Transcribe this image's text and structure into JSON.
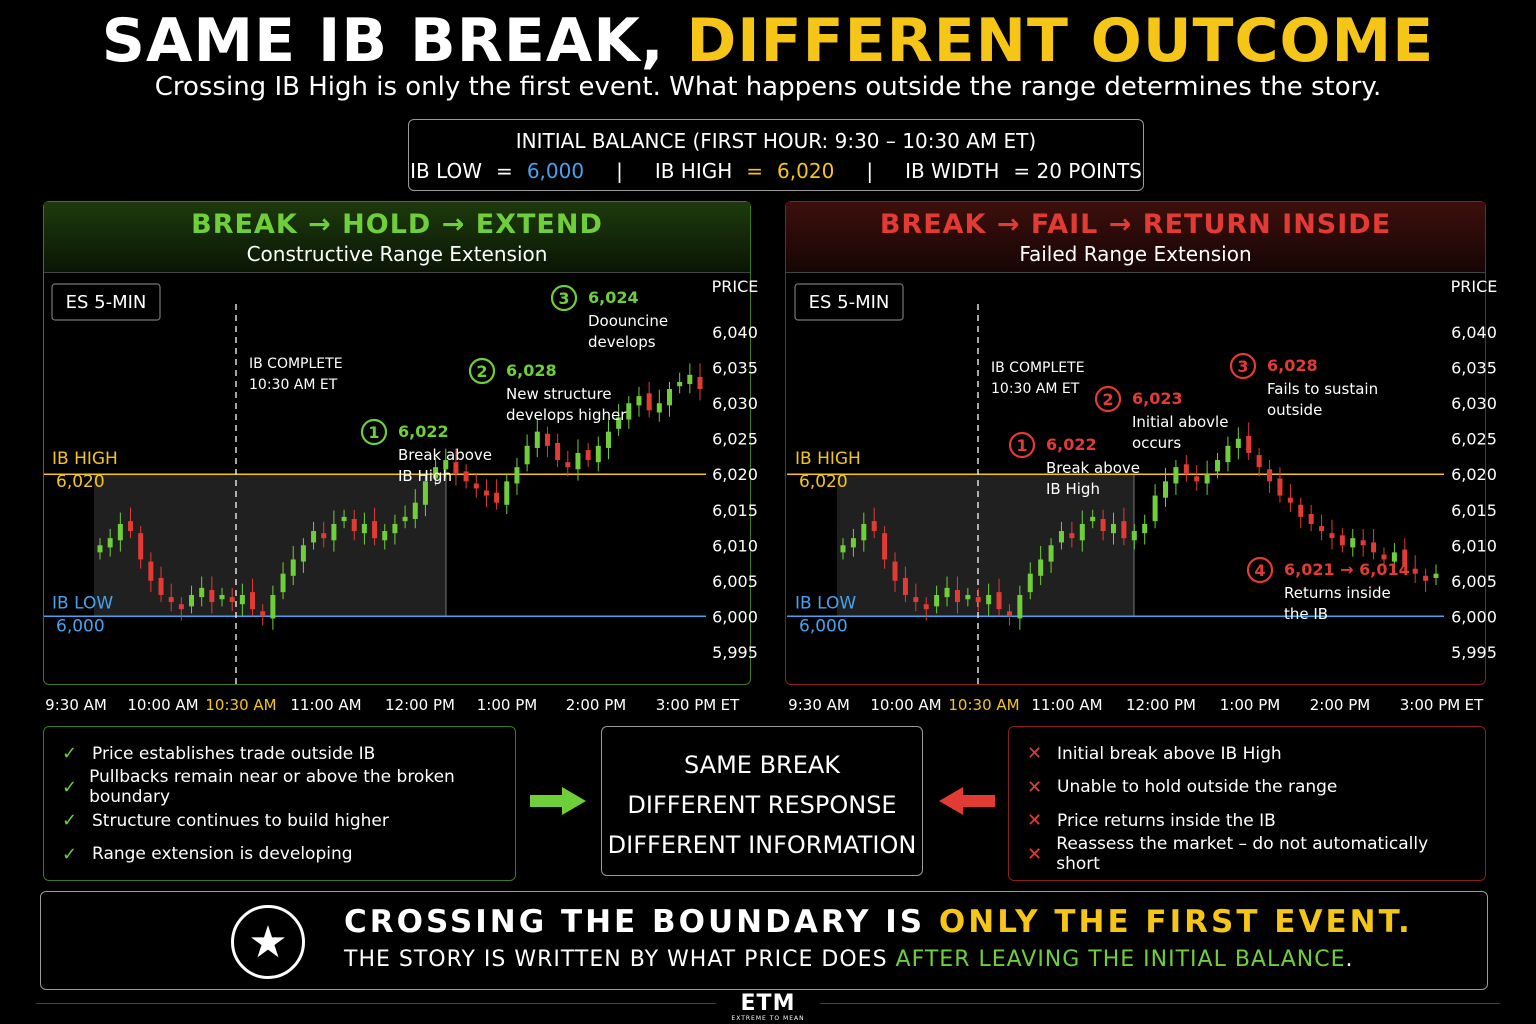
{
  "title": {
    "part1": "SAME IB BREAK,",
    "part2": "DIFFERENT OUTCOME"
  },
  "subtitle": "Crossing IB High is only the first event. What happens outside the range determines the story.",
  "ib_box": {
    "label_bold": "INITIAL BALANCE",
    "label_rest": "(FIRST HOUR: 9:30 – 10:30 AM ET)",
    "low_label": "IB LOW",
    "eq": "=",
    "low_value": "6,000",
    "sep": "|",
    "high_label": "IB HIGH",
    "high_value": "6,020",
    "width_label": "IB WIDTH",
    "width_value": "= 20 POINTS"
  },
  "colors": {
    "green": "#6fcf3a",
    "red": "#e23b33",
    "yellow": "#f5c518",
    "blue": "#46a3ef"
  },
  "left_panel": {
    "heading": "BREAK → HOLD → EXTEND",
    "subheading": "Constructive Range Extension"
  },
  "right_panel": {
    "heading": "BREAK → FAIL → RETURN INSIDE",
    "subheading": "Failed Range Extension"
  },
  "chart_common": {
    "instrument": "ES 5-MIN",
    "price_label": "PRICE",
    "ib_high_label": "IB HIGH",
    "ib_high_value": "6,020",
    "ib_low_label": "IB LOW",
    "ib_low_value": "6,000",
    "ib_complete_1": "IB COMPLETE",
    "ib_complete_2": "10:30 AM ET",
    "et_label": "ET"
  },
  "chart_data": [
    {
      "type": "candlestick",
      "title": "BREAK → HOLD → EXTEND",
      "ylabel": "PRICE",
      "ylim": [
        5993,
        6042
      ],
      "y_ticks": [
        "6,040",
        "6,035",
        "6,030",
        "6,025",
        "6,020",
        "6,015",
        "6,010",
        "6,005",
        "6,000",
        "5,995"
      ],
      "y_tick_values": [
        6040,
        6035,
        6030,
        6025,
        6020,
        6015,
        6010,
        6005,
        6000,
        5995
      ],
      "x_ticks": [
        "9:30 AM",
        "10:00 AM",
        "10:30 AM",
        "11:00 AM",
        "12:00 PM",
        "1:00 PM",
        "2:00 PM",
        "3:00 PM"
      ],
      "ib_high": 6020,
      "ib_low": 6000,
      "closes": [
        6010,
        6011,
        6013,
        6012,
        6008,
        6005,
        6003,
        6002,
        6001,
        6003,
        6004,
        6002,
        6003,
        6002,
        6003,
        6001,
        6000,
        6003,
        6006,
        6008,
        6010,
        6012,
        6011,
        6013,
        6014,
        6012,
        6013,
        6011,
        6012,
        6013,
        6014,
        6016,
        6019,
        6021,
        6022,
        6020,
        6019,
        6018,
        6017,
        6016,
        6019,
        6021,
        6024,
        6026,
        6024,
        6022,
        6021,
        6023,
        6022,
        6024,
        6026,
        6028,
        6030,
        6031,
        6029,
        6030,
        6032,
        6033,
        6034,
        6032
      ],
      "annotations": [
        {
          "num": "1",
          "price": "6,022",
          "text1": "Break above",
          "text2": "IB High"
        },
        {
          "num": "2",
          "price": "6,028",
          "text1": "New structure",
          "text2": "develops higher"
        },
        {
          "num": "3",
          "price": "6,024",
          "text1": "Doouncine",
          "text2": "develops"
        }
      ]
    },
    {
      "type": "candlestick",
      "title": "BREAK → FAIL → RETURN INSIDE",
      "ylabel": "PRICE",
      "ylim": [
        5993,
        6042
      ],
      "y_ticks": [
        "6,040",
        "6,035",
        "6,030",
        "6,025",
        "6,020",
        "6,015",
        "6,010",
        "6,005",
        "6,000",
        "5,995"
      ],
      "y_tick_values": [
        6040,
        6035,
        6030,
        6025,
        6020,
        6015,
        6010,
        6005,
        6000,
        5995
      ],
      "x_ticks": [
        "9:30 AM",
        "10:00 AM",
        "10:30 AM",
        "11:00 AM",
        "12:00 PM",
        "1:00 PM",
        "2:00 PM",
        "3:00 PM"
      ],
      "ib_high": 6020,
      "ib_low": 6000,
      "closes": [
        6010,
        6011,
        6013,
        6012,
        6008,
        6005,
        6003,
        6002,
        6001,
        6003,
        6004,
        6002,
        6003,
        6002,
        6003,
        6001,
        6000,
        6003,
        6006,
        6008,
        6010,
        6012,
        6011,
        6013,
        6014,
        6012,
        6013,
        6011,
        6012,
        6013,
        6017,
        6019,
        6021,
        6020,
        6019,
        6020,
        6022,
        6024,
        6025,
        6023,
        6021,
        6019,
        6017,
        6016,
        6014,
        6013,
        6012,
        6011,
        6010,
        6011,
        6010,
        6009,
        6008,
        6009,
        6007,
        6006,
        6005,
        6006
      ],
      "annotations": [
        {
          "num": "1",
          "price": "6,022",
          "text1": "Break above",
          "text2": "IB High"
        },
        {
          "num": "2",
          "price": "6,023",
          "text1": "Initial abovle",
          "text2": "occurs"
        },
        {
          "num": "3",
          "price": "6,028",
          "text1": "Fails to sustain",
          "text2": "outside"
        },
        {
          "num": "4",
          "price": "6,021 → 6,014",
          "text1": "Returns inside",
          "text2": "the IB"
        }
      ]
    }
  ],
  "left_list": [
    "Price establishes trade outside IB",
    "Pullbacks remain near or above the broken boundary",
    "Structure continues to build higher",
    "Range extension is developing"
  ],
  "right_list": [
    "Initial break above IB High",
    "Unable to hold outside the range",
    "Price returns inside the IB",
    "Reassess the market – do not automatically short"
  ],
  "check_mark": "✓",
  "x_mark": "✕",
  "center_box": [
    "SAME BREAK",
    "DIFFERENT RESPONSE",
    "DIFFERENT INFORMATION"
  ],
  "bottom": {
    "line1_a": "CROSSING THE BOUNDARY IS",
    "line1_b": "ONLY THE FIRST EVENT.",
    "line2_a": "THE STORY IS WRITTEN BY WHAT PRICE DOES",
    "line2_b": "AFTER LEAVING THE INITIAL BALANCE",
    "line2_c": "."
  },
  "star_icon": "★",
  "logo": {
    "name": "ETM",
    "tagline": "EXTREME TO MEAN"
  }
}
